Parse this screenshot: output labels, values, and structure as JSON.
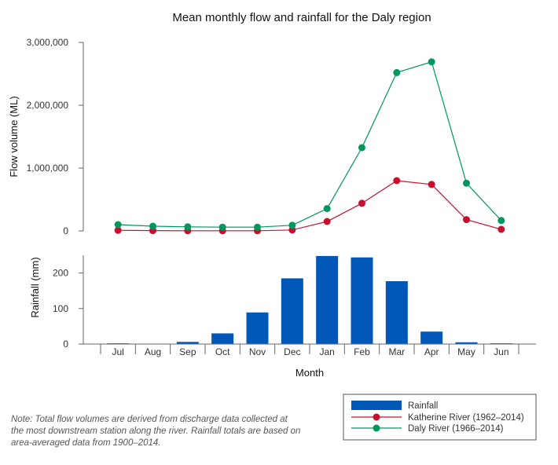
{
  "chart_data": {
    "title": "Mean monthly flow and rainfall for the Daly region",
    "xlabel": "Month",
    "categories": [
      "Jul",
      "Aug",
      "Sep",
      "Oct",
      "Nov",
      "Dec",
      "Jan",
      "Feb",
      "Mar",
      "Apr",
      "May",
      "Jun"
    ],
    "flow_panel": {
      "type": "line",
      "ylabel": "Flow volume (ML)",
      "ylim": [
        0,
        3000000
      ],
      "yticks": [
        0,
        1000000,
        2000000,
        3000000
      ],
      "ytick_labels": [
        "0",
        "1,000,000",
        "2,000,000",
        "3,000,000"
      ],
      "series": [
        {
          "name": "Katherine River (1962–2014)",
          "color": "#c8102e",
          "values": [
            10000,
            5000,
            3000,
            3000,
            3000,
            15000,
            150000,
            440000,
            800000,
            740000,
            180000,
            25000
          ]
        },
        {
          "name": "Daly River (1966–2014)",
          "color": "#00965e",
          "values": [
            100000,
            75000,
            65000,
            60000,
            60000,
            90000,
            355000,
            1325000,
            2520000,
            2690000,
            760000,
            165000
          ]
        }
      ]
    },
    "rain_panel": {
      "type": "bar",
      "ylabel": "Rainfall (mm)",
      "ylim": [
        0,
        250
      ],
      "yticks": [
        0,
        100,
        200
      ],
      "ytick_labels": [
        "0",
        "100",
        "200"
      ],
      "series": [
        {
          "name": "Rainfall",
          "color": "#0057b8",
          "values": [
            2,
            1,
            6,
            30,
            89,
            185,
            248,
            244,
            177,
            35,
            5,
            2
          ]
        }
      ]
    },
    "legend": {
      "position": "bottom-right",
      "entries": [
        "Rainfall",
        "Katherine River (1962–2014)",
        "Daly River (1966–2014)"
      ]
    }
  },
  "note": "Note: Total flow volumes are derived from discharge data collected at the most downstream station along the river. Rainfall totals are based on area-averaged data from 1900–2014."
}
